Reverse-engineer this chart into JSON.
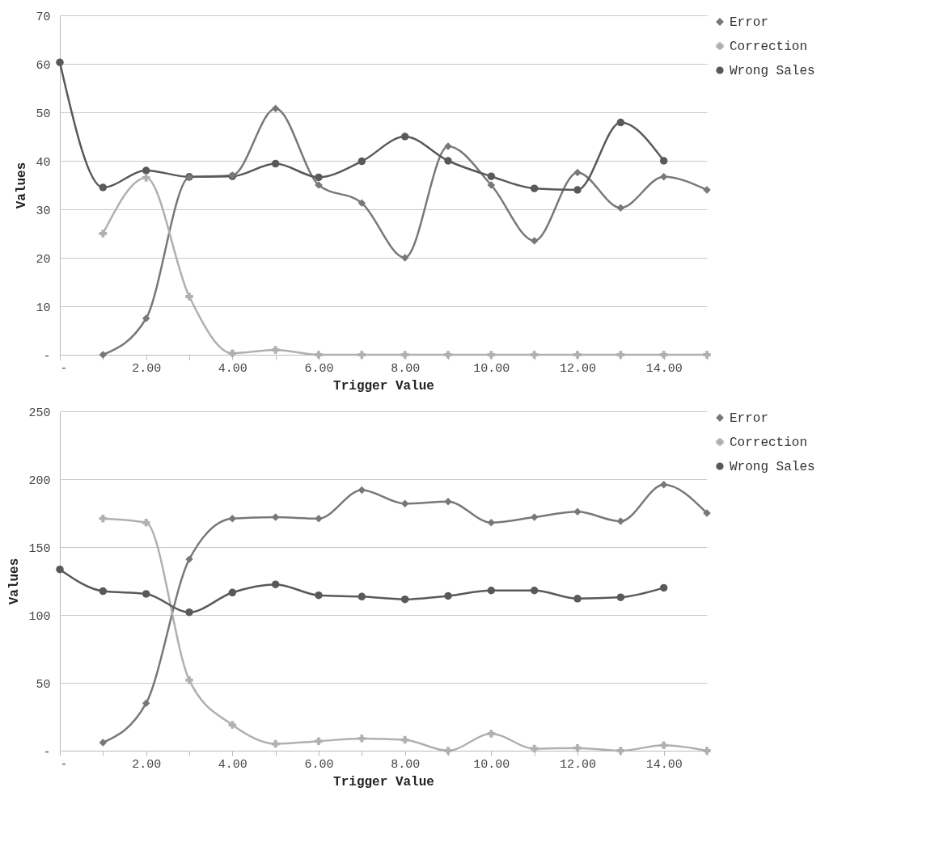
{
  "chart_data": [
    {
      "type": "line",
      "xlabel": "Trigger Value",
      "ylabel": "Values",
      "x": [
        0,
        1,
        2,
        3,
        4,
        5,
        6,
        7,
        8,
        9,
        10,
        11,
        12,
        13,
        14,
        15
      ],
      "series": [
        {
          "name": "Error",
          "color": "#787878",
          "marker": "diamond",
          "values": [
            null,
            0,
            7.5,
            36.6,
            37,
            50.8,
            35,
            31.3,
            20,
            43,
            35,
            23.5,
            37.6,
            30.3,
            36.7,
            34
          ]
        },
        {
          "name": "Correction",
          "color": "#b0b0b0",
          "marker": "cross",
          "values": [
            null,
            25,
            36.5,
            12,
            0.3,
            1,
            0,
            0,
            0,
            0,
            0,
            0,
            0,
            0,
            0,
            0
          ]
        },
        {
          "name": "Wrong Sales",
          "color": "#595959",
          "marker": "circle",
          "values": [
            60.3,
            34.5,
            38,
            36.7,
            36.8,
            39.4,
            36.6,
            39.9,
            45,
            40,
            36.8,
            34.3,
            34,
            47.9,
            40,
            null
          ]
        }
      ],
      "xlim": [
        0,
        15
      ],
      "xticks": [
        {
          "value": 0,
          "label": "-"
        },
        {
          "value": 1,
          "label": null
        },
        {
          "value": 2,
          "label": "2.00"
        },
        {
          "value": 3,
          "label": null
        },
        {
          "value": 4,
          "label": "4.00"
        },
        {
          "value": 5,
          "label": null
        },
        {
          "value": 6,
          "label": "6.00"
        },
        {
          "value": 7,
          "label": null
        },
        {
          "value": 8,
          "label": "8.00"
        },
        {
          "value": 9,
          "label": null
        },
        {
          "value": 10,
          "label": "10.00"
        },
        {
          "value": 11,
          "label": null
        },
        {
          "value": 12,
          "label": "12.00"
        },
        {
          "value": 13,
          "label": null
        },
        {
          "value": 14,
          "label": "14.00"
        },
        {
          "value": 15,
          "label": null
        }
      ],
      "ylim": [
        0,
        70
      ],
      "yticks": [
        {
          "value": 0,
          "label": "-"
        },
        10,
        20,
        30,
        40,
        50,
        60,
        70
      ],
      "grid": "y",
      "legend": "right",
      "line_style": "solid"
    },
    {
      "type": "line",
      "xlabel": "Trigger Value",
      "ylabel": "Values",
      "x": [
        0,
        1,
        2,
        3,
        4,
        5,
        6,
        7,
        8,
        9,
        10,
        11,
        12,
        13,
        14,
        15
      ],
      "series": [
        {
          "name": "Error",
          "color": "#787878",
          "marker": "diamond",
          "values": [
            null,
            6,
            35,
            141,
            171,
            172,
            171,
            192,
            182,
            183.5,
            168,
            172,
            176,
            169,
            196,
            175
          ]
        },
        {
          "name": "Correction",
          "color": "#b0b0b0",
          "marker": "cross",
          "values": [
            null,
            171,
            168,
            52,
            19,
            5,
            7,
            9,
            8,
            0,
            12.5,
            1.5,
            2,
            0,
            4,
            0
          ]
        },
        {
          "name": "Wrong Sales",
          "color": "#595959",
          "marker": "circle",
          "values": [
            133.5,
            117.5,
            115.5,
            102,
            116.5,
            122.5,
            114.5,
            113.5,
            111.5,
            114,
            118,
            118,
            112,
            113,
            120,
            null
          ]
        }
      ],
      "xlim": [
        0,
        15
      ],
      "xticks": [
        {
          "value": 0,
          "label": "-"
        },
        {
          "value": 1,
          "label": null
        },
        {
          "value": 2,
          "label": "2.00"
        },
        {
          "value": 3,
          "label": null
        },
        {
          "value": 4,
          "label": "4.00"
        },
        {
          "value": 5,
          "label": null
        },
        {
          "value": 6,
          "label": "6.00"
        },
        {
          "value": 7,
          "label": null
        },
        {
          "value": 8,
          "label": "8.00"
        },
        {
          "value": 9,
          "label": null
        },
        {
          "value": 10,
          "label": "10.00"
        },
        {
          "value": 11,
          "label": null
        },
        {
          "value": 12,
          "label": "12.00"
        },
        {
          "value": 13,
          "label": null
        },
        {
          "value": 14,
          "label": "14.00"
        },
        {
          "value": 15,
          "label": null
        }
      ],
      "ylim": [
        0,
        250
      ],
      "yticks": [
        {
          "value": 0,
          "label": "-"
        },
        50,
        100,
        150,
        200,
        250
      ],
      "grid": "y",
      "legend": "right",
      "line_style": "solid"
    }
  ]
}
